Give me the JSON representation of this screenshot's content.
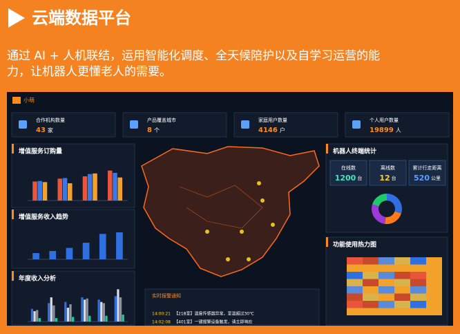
{
  "header": {
    "title": "云端数据平台",
    "description": [
      "通过 AI + 人机联结，运用智能化调度、全天候陪护以及自学习运营的能",
      "力，让机器人更懂老人的需要。"
    ]
  },
  "dashboard": {
    "logo": "小萌",
    "kpis": [
      {
        "label": "合作机构数量",
        "value": 43,
        "unit": "家"
      },
      {
        "label": "产品覆盖城市",
        "value": 8,
        "unit": "个"
      },
      {
        "label": "家庭用户数量",
        "value": 4146,
        "unit": "户"
      },
      {
        "label": "个人用户数量",
        "value": 19899,
        "unit": "人"
      }
    ],
    "orders": {
      "title": "增值服务订购量",
      "ylim": [
        0,
        600
      ],
      "series": [
        {
          "color": "#e8553a",
          "values": [
            330,
            380,
            420,
            520
          ]
        },
        {
          "color": "#3a78e8",
          "values": [
            340,
            390,
            460,
            480
          ]
        },
        {
          "color": "#f2a12a",
          "values": [
            320,
            300,
            470,
            400
          ]
        }
      ]
    },
    "income": {
      "title": "增值服务收入趋势",
      "ylim": [
        0,
        6
      ],
      "color": "#2f6fe0",
      "values": [
        1.2,
        1.6,
        2.2,
        3.2,
        4.9,
        5.2
      ]
    },
    "annual": {
      "title": "年度收入分析",
      "ylim": [
        0,
        30
      ],
      "series": [
        {
          "color": "#2f6fe0",
          "values": [
            11,
            16,
            17,
            21,
            19,
            22
          ]
        },
        {
          "color": "#d8dbe2",
          "values": [
            9,
            21,
            12,
            19,
            17,
            28
          ]
        },
        {
          "color": "#8e929c",
          "values": [
            10,
            14,
            15,
            20,
            16,
            21
          ]
        },
        {
          "color": "#1fc9a0",
          "values": [
            3,
            3,
            4,
            5,
            5,
            6
          ]
        }
      ]
    },
    "robots": {
      "title": "机器人终端统计",
      "stats": [
        {
          "label": "在线数",
          "value": 1200,
          "unit": "台",
          "color": "#3ee8c0"
        },
        {
          "label": "离线数",
          "value": 12,
          "unit": "台",
          "color": "#ffd21e"
        },
        {
          "label": "累计行走距离",
          "value": 520,
          "unit": "公里",
          "color": "#5aa0ff"
        }
      ],
      "donut": [
        {
          "color": "#2f6fe0",
          "value": 30
        },
        {
          "color": "#ff7a1a",
          "value": 22
        },
        {
          "color": "#9b3ad6",
          "value": 28
        },
        {
          "color": "#1fc96a",
          "value": 20
        }
      ]
    },
    "heatmap": {
      "title": "功能使用热力图"
    },
    "alerts": {
      "title": "实时报警通知",
      "rows": [
        {
          "time": "14:00:21",
          "text": "【218室】温度传感器异常，室温超过30℃"
        },
        {
          "time": "14:02:08",
          "text": "【401室】一键报警设备触发，请立即响应"
        }
      ]
    }
  }
}
